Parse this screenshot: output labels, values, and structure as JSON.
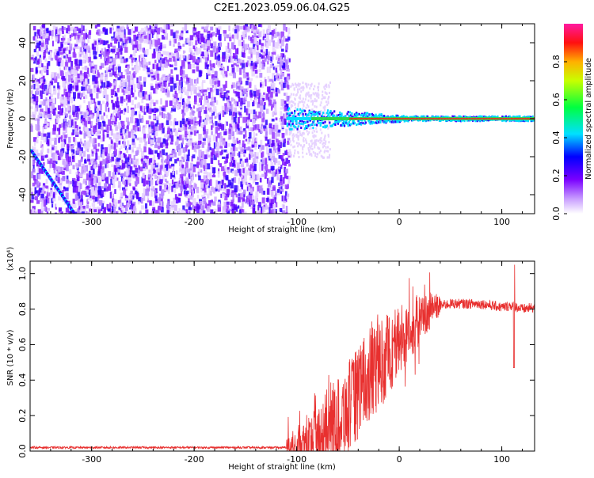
{
  "chart_data": [
    {
      "type": "heatmap",
      "title": "C2E1.2023.059.06.04.G25",
      "xlabel": "Height of straight line (km)",
      "ylabel": "Frequency (Hz)",
      "xlim": [
        -360,
        132
      ],
      "ylim": [
        -50,
        50
      ],
      "xticks": [
        "-300",
        "-200",
        "-100",
        "0",
        "100"
      ],
      "yticks": [
        "-40",
        "-20",
        "0",
        "20",
        "40"
      ],
      "colorbar": {
        "label": "Normalized spectral amplitude",
        "range": [
          0,
          1
        ],
        "ticks": [
          "0.0",
          "0.2",
          "0.4",
          "0.6",
          "0.8"
        ],
        "colormap": "rainbow"
      },
      "colors": {
        "low": "#9a3cff",
        "mid": "#2ed84a",
        "high": "#ff1a1a"
      },
      "features": {
        "noise_region_x": [
          -360,
          -108
        ],
        "signal_band_frequency": 0,
        "signal_start_height": -110
      }
    },
    {
      "type": "line",
      "xlabel": "Height of straight line (km)",
      "ylabel": "SNR (10 * v/v)",
      "scale_label": "(x10⁴)",
      "xlim": [
        -360,
        132
      ],
      "ylim": [
        0,
        1.07
      ],
      "xticks": [
        "-300",
        "-200",
        "-100",
        "0",
        "100"
      ],
      "yticks": [
        "0.0",
        "0.2",
        "0.4",
        "0.6",
        "0.8",
        "1.0"
      ],
      "line_color": "#e8302f",
      "series": [
        {
          "x": [
            -360,
            -300,
            -200,
            -150,
            -110,
            -100,
            -80,
            -60,
            -50,
            -40,
            -30,
            -20,
            -10,
            0,
            10,
            20,
            30,
            40,
            50,
            60,
            80,
            100,
            110,
            115,
            120,
            132
          ],
          "values": [
            0.02,
            0.02,
            0.02,
            0.02,
            0.02,
            0.03,
            0.08,
            0.18,
            0.25,
            0.33,
            0.42,
            0.48,
            0.55,
            0.62,
            0.68,
            0.74,
            0.79,
            0.82,
            0.83,
            0.83,
            0.83,
            0.81,
            0.82,
            0.81,
            0.8,
            0.81
          ]
        }
      ]
    }
  ]
}
